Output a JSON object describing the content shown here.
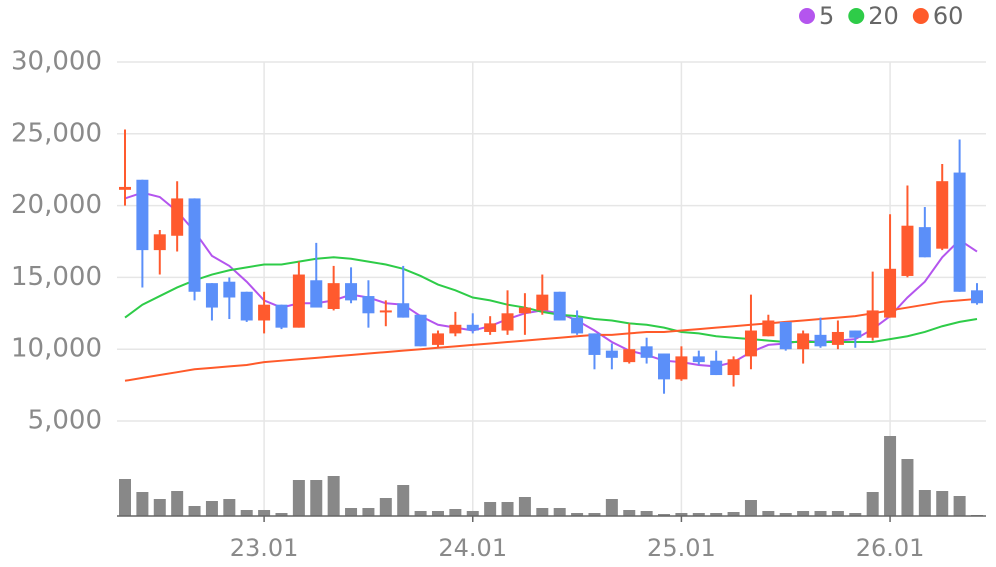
{
  "chart_data": {
    "type": "candlestick",
    "categories": [
      null,
      null,
      null,
      null,
      null,
      null,
      null,
      null,
      "23.01",
      null,
      null,
      null,
      null,
      null,
      null,
      null,
      null,
      null,
      null,
      null,
      "24.01",
      null,
      null,
      null,
      null,
      null,
      null,
      null,
      null,
      null,
      null,
      null,
      "25.01",
      null,
      null,
      null,
      null,
      null,
      null,
      null,
      null,
      null,
      null,
      null,
      "26.01",
      null,
      null,
      null,
      null,
      null
    ],
    "open": [
      21100,
      21800,
      16900,
      17900,
      20500,
      14600,
      14700,
      14000,
      12000,
      13100,
      11500,
      14800,
      12800,
      14600,
      13700,
      12600,
      13200,
      12400,
      10300,
      11100,
      11700,
      11200,
      11300,
      12500,
      12700,
      14000,
      12200,
      11100,
      9900,
      9100,
      10200,
      9700,
      7900,
      9500,
      9200,
      8200,
      9500,
      10900,
      11900,
      10000,
      11000,
      10300,
      11300,
      10800,
      12200,
      15100,
      18500,
      17000,
      22300,
      14100
    ],
    "high": [
      25300,
      21800,
      18300,
      21700,
      20500,
      14600,
      15000,
      14000,
      14000,
      13100,
      16100,
      17400,
      15800,
      15700,
      14800,
      13400,
      15800,
      12400,
      11300,
      12600,
      12500,
      12300,
      14100,
      13900,
      15200,
      14000,
      12700,
      11100,
      10400,
      11800,
      10800,
      9700,
      10200,
      9900,
      9900,
      9500,
      13800,
      12400,
      11900,
      11300,
      12200,
      12000,
      11300,
      15400,
      19400,
      21400,
      19900,
      22900,
      24600,
      14600
    ],
    "low": [
      20000,
      14300,
      15200,
      16800,
      13400,
      12000,
      12100,
      11900,
      11100,
      11400,
      11500,
      12900,
      12700,
      13200,
      11500,
      11600,
      12200,
      10200,
      10100,
      10900,
      11100,
      11000,
      11000,
      11000,
      12400,
      12000,
      11000,
      8600,
      8600,
      9000,
      9000,
      6900,
      7800,
      8900,
      8200,
      7400,
      8600,
      10900,
      9900,
      9000,
      10100,
      10000,
      10100,
      10600,
      12200,
      15000,
      16400,
      16900,
      14000,
      13100
    ],
    "close": [
      21300,
      16900,
      18000,
      20500,
      14000,
      12900,
      13600,
      12000,
      13100,
      11500,
      15200,
      12900,
      14600,
      13400,
      12500,
      12700,
      12200,
      10200,
      11100,
      11700,
      11300,
      11800,
      12500,
      12900,
      13800,
      12000,
      11100,
      9600,
      9400,
      10000,
      9400,
      7900,
      9500,
      9100,
      8200,
      9300,
      11300,
      12000,
      10000,
      11100,
      10200,
      11200,
      10800,
      12700,
      15600,
      18600,
      16400,
      21700,
      14000,
      13200
    ],
    "up_color": "#ff5a2e",
    "down_color": "#5b8ff9",
    "ma": [
      {
        "name": "5",
        "color": "#b455ee",
        "values": [
          20500,
          20900,
          20600,
          19600,
          18200,
          16500,
          15800,
          14700,
          13400,
          12900,
          13200,
          13200,
          13400,
          13800,
          13600,
          13200,
          13100,
          12300,
          11700,
          11500,
          11300,
          11600,
          12100,
          12500,
          12700,
          12500,
          12000,
          11300,
          10500,
          9900,
          9600,
          9200,
          9100,
          8900,
          8800,
          9100,
          9800,
          10300,
          10400,
          10600,
          10500,
          10600,
          10700,
          11400,
          12300,
          13600,
          14700,
          16400,
          17600,
          16800
        ]
      },
      {
        "name": "20",
        "color": "#2ecc48",
        "values": [
          12200,
          13100,
          13700,
          14300,
          14800,
          15200,
          15500,
          15700,
          15900,
          15900,
          16100,
          16300,
          16400,
          16300,
          16100,
          15900,
          15600,
          15100,
          14500,
          14100,
          13600,
          13400,
          13100,
          12900,
          12600,
          12400,
          12300,
          12100,
          12000,
          11800,
          11700,
          11500,
          11200,
          11100,
          10900,
          10800,
          10700,
          10600,
          10500,
          10500,
          10500,
          10500,
          10500,
          10500,
          10700,
          10900,
          11200,
          11600,
          11900,
          12100
        ]
      },
      {
        "name": "60",
        "color": "#ff5a2a",
        "values": [
          7800,
          8000,
          8200,
          8400,
          8600,
          8700,
          8800,
          8900,
          9100,
          9200,
          9300,
          9400,
          9500,
          9600,
          9700,
          9800,
          9900,
          10000,
          10100,
          10200,
          10300,
          10400,
          10500,
          10600,
          10700,
          10800,
          10900,
          11000,
          11000,
          11100,
          11200,
          11200,
          11300,
          11400,
          11500,
          11600,
          11700,
          11800,
          11900,
          12000,
          12100,
          12200,
          12300,
          12500,
          12700,
          12900,
          13100,
          13300,
          13400,
          13500
        ]
      }
    ],
    "volume": {
      "color": "#888888",
      "values": [
        37,
        24,
        17,
        25,
        10,
        15,
        17,
        6,
        6,
        3,
        36,
        36,
        40,
        8,
        8,
        18,
        31,
        5,
        5,
        7,
        5,
        14,
        14,
        19,
        8,
        8,
        3,
        3,
        17,
        6,
        5,
        2,
        3,
        3,
        3,
        4,
        16,
        5,
        3,
        5,
        5,
        5,
        3,
        24,
        80,
        57,
        26,
        25,
        20,
        1
      ]
    },
    "vlim": [
      0,
      100
    ],
    "ylim": [
      5000,
      30000
    ],
    "yticks": [
      {
        "value": 5000,
        "label": "5,000"
      },
      {
        "value": 10000,
        "label": "10,000"
      },
      {
        "value": 15000,
        "label": "15,000"
      },
      {
        "value": 20000,
        "label": "20,000"
      },
      {
        "value": 25000,
        "label": "25,000"
      },
      {
        "value": 30000,
        "label": "30,000"
      }
    ],
    "grid": true
  }
}
